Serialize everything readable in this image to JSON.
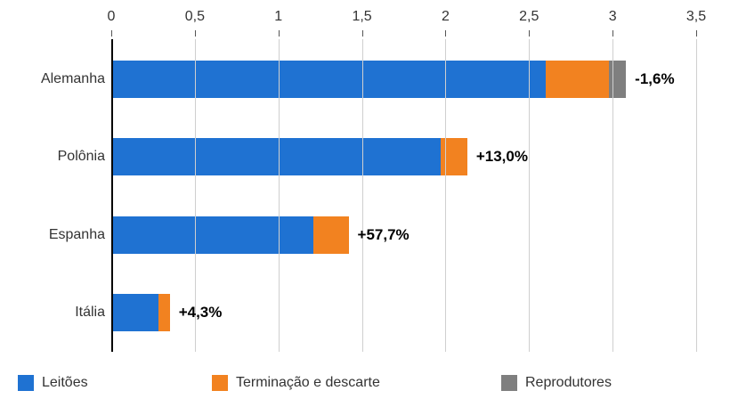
{
  "chart_data": {
    "type": "bar",
    "orientation": "horizontal",
    "stacked": true,
    "title": "",
    "categories": [
      "Alemanha",
      "Polônia",
      "Espanha",
      "Itália"
    ],
    "series": [
      {
        "name": "Leitões",
        "color": "#1F72D2",
        "values": [
          2.6,
          1.97,
          1.21,
          0.28
        ]
      },
      {
        "name": "Terminação e descarte",
        "color": "#F28220",
        "values": [
          0.38,
          0.16,
          0.21,
          0.07
        ]
      },
      {
        "name": "Reprodutores",
        "color": "#7F7F7F",
        "values": [
          0.1,
          0,
          0,
          0
        ]
      }
    ],
    "bar_labels": [
      "-1,6%",
      "+13,0%",
      "+57,7%",
      "+4,3%"
    ],
    "x_axis": {
      "min": 0,
      "max": 3.5,
      "position": "top",
      "ticks": [
        0,
        0.5,
        1,
        1.5,
        2,
        2.5,
        3,
        3.5
      ],
      "tick_labels": [
        "0",
        "0,5",
        "1",
        "1,5",
        "2",
        "2,5",
        "3",
        "3,5"
      ]
    },
    "grid": true,
    "legend_position": "bottom",
    "axis_color": "#000000",
    "gridline_color": "#cfcfcf"
  }
}
